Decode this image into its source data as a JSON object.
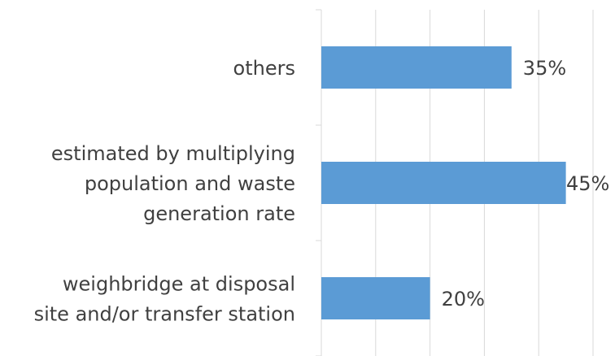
{
  "chart_data": {
    "type": "barh",
    "categories": [
      "others",
      "estimated by multiplying\npopulation and waste\ngeneration rate",
      "weighbridge at disposal\nsite and/or transfer station"
    ],
    "values": [
      35,
      45,
      20
    ],
    "value_labels": [
      "35%",
      "45%",
      "20%"
    ],
    "color": "#5b9bd5",
    "xlim": [
      0,
      50
    ],
    "xticks": [
      0,
      10,
      20,
      30,
      40,
      50
    ],
    "grid": true
  }
}
